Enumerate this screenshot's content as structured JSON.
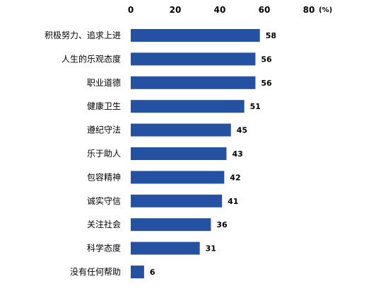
{
  "chart_data": {
    "type": "bar",
    "orientation": "horizontal",
    "categories": [
      "积极努力、追求上进",
      "人生的乐观态度",
      "职业道德",
      "健康卫生",
      "遵纪守法",
      "乐于助人",
      "包容精神",
      "诚实守信",
      "关注社会",
      "科学态度",
      "没有任何帮助"
    ],
    "values": [
      58,
      56,
      56,
      51,
      45,
      43,
      42,
      41,
      36,
      31,
      6
    ],
    "x_ticks": [
      "0",
      "20",
      "40",
      "60",
      "80"
    ],
    "unit_label": "(%)",
    "xlim": [
      0,
      80
    ],
    "axis_position": "top",
    "grid": false,
    "bar_color": "#2451A2"
  }
}
